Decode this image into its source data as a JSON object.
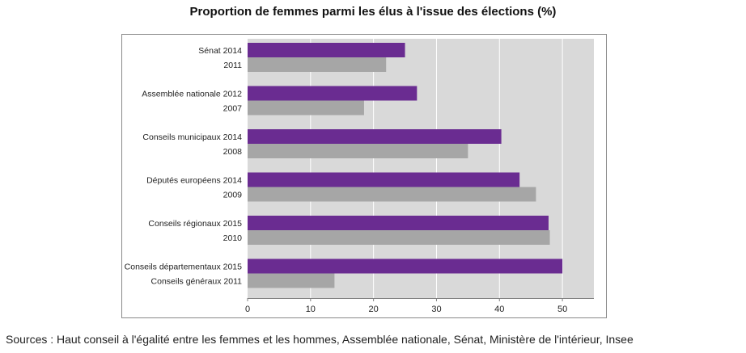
{
  "title": "Proportion de femmes parmi les élus à l'issue des élections (%)",
  "source": "Sources : Haut conseil à l'égalité entre les femmes et les hommes, Assemblée nationale, Sénat, Ministère de l'intérieur, Insee",
  "colors": {
    "recent": "#6a2c91",
    "previous": "#a6a6a6",
    "plot_bg": "#d9d9d9",
    "grid": "#ffffff"
  },
  "chart_data": {
    "type": "bar",
    "orientation": "horizontal",
    "title": "Proportion de femmes parmi les élus à l'issue des élections (%)",
    "xlim": [
      0,
      55
    ],
    "xticks": [
      0,
      10,
      20,
      30,
      40,
      50
    ],
    "grid": true,
    "legend": "none",
    "bars": [
      {
        "label": "Sénat 2014",
        "value": 25,
        "kind": "recent"
      },
      {
        "label": "2011",
        "value": 22,
        "kind": "previous"
      },
      {
        "label": "Assemblée nationale 2012",
        "value": 26.9,
        "kind": "recent"
      },
      {
        "label": "2007",
        "value": 18.5,
        "kind": "previous"
      },
      {
        "label": "Conseils municipaux 2014",
        "value": 40.3,
        "kind": "recent"
      },
      {
        "label": "2008",
        "value": 35,
        "kind": "previous"
      },
      {
        "label": "Députés européens 2014",
        "value": 43.2,
        "kind": "recent"
      },
      {
        "label": "2009",
        "value": 45.8,
        "kind": "previous"
      },
      {
        "label": "Conseils régionaux 2015",
        "value": 47.8,
        "kind": "recent"
      },
      {
        "label": "2010",
        "value": 48,
        "kind": "previous"
      },
      {
        "label": "Conseils départementaux 2015",
        "value": 50,
        "kind": "recent"
      },
      {
        "label": "Conseils généraux 2011",
        "value": 13.8,
        "kind": "previous"
      }
    ]
  }
}
